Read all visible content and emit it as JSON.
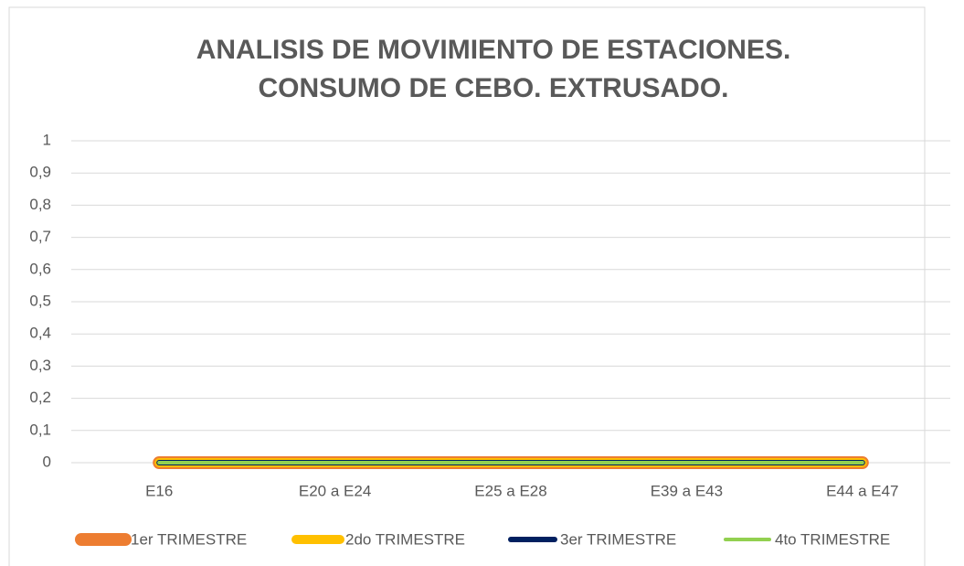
{
  "chart_data": {
    "type": "line",
    "title": [
      "ANALISIS DE MOVIMIENTO DE ESTACIONES.",
      "CONSUMO DE CEBO. EXTRUSADO."
    ],
    "categories": [
      "E16",
      "E20 a E24",
      "E25 a E28",
      "E39 a E43",
      "E44 a E47"
    ],
    "series": [
      {
        "name": "1er TRIMESTRE",
        "color": "#ed7d31",
        "values": [
          0,
          0,
          0,
          0,
          0
        ]
      },
      {
        "name": "2do TRIMESTRE",
        "color": "#ffc000",
        "values": [
          0,
          0,
          0,
          0,
          0
        ]
      },
      {
        "name": "3er TRIMESTRE",
        "color": "#002060",
        "values": [
          0,
          0,
          0,
          0,
          0
        ]
      },
      {
        "name": "4to TRIMESTRE",
        "color": "#92d050",
        "values": [
          0,
          0,
          0,
          0,
          0
        ]
      }
    ],
    "ylim": [
      0,
      1
    ],
    "yticks": [
      0,
      {
        "value": 0.1,
        "label": "0,1"
      },
      {
        "value": 0.2,
        "label": "0,2"
      },
      {
        "value": 0.3,
        "label": "0,3"
      },
      {
        "value": 0.4,
        "label": "0,4"
      },
      {
        "value": 0.5,
        "label": "0,5"
      },
      {
        "value": 0.6,
        "label": "0,6"
      },
      {
        "value": 0.7,
        "label": "0,7"
      },
      {
        "value": 0.8,
        "label": "0,8"
      },
      {
        "value": 0.9,
        "label": "0,9"
      },
      1
    ],
    "grid": true,
    "legend": "bottom"
  }
}
